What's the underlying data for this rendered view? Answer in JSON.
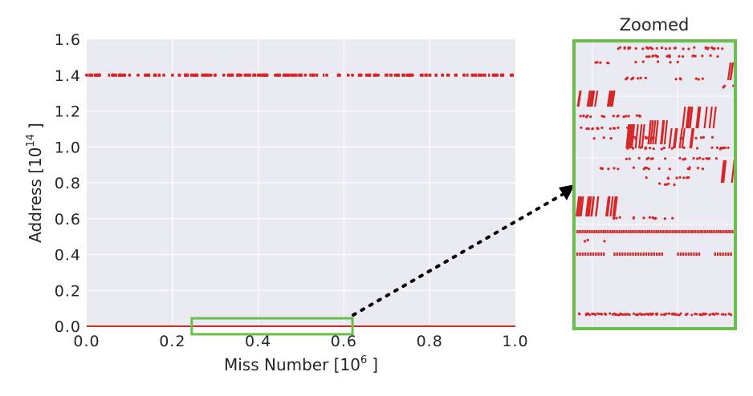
{
  "chart_data": [
    {
      "type": "scatter",
      "panel": "main",
      "title": "",
      "xlabel": "Miss Number [10^6 ]",
      "ylabel": "Address [10^14 ]",
      "xlabel_main": "Miss Number [10",
      "xlabel_exp": "6",
      "xlabel_end": "]",
      "ylabel_main": "Address [10",
      "ylabel_exp": "14",
      "ylabel_end": "]",
      "xlim": [
        0.0,
        1.0
      ],
      "ylim": [
        0.0,
        1.6
      ],
      "xticks": [
        0.0,
        0.2,
        0.4,
        0.6,
        0.8,
        1.0
      ],
      "xtick_labels": [
        "0.0",
        "0.2",
        "0.4",
        "0.6",
        "0.8",
        "1.0"
      ],
      "yticks": [
        0.0,
        0.2,
        0.4,
        0.6,
        0.8,
        1.0,
        1.2,
        1.4,
        1.6
      ],
      "ytick_labels": [
        "0.0",
        "0.2",
        "0.4",
        "0.6",
        "0.8",
        "1.0",
        "1.2",
        "1.4",
        "1.6"
      ],
      "grid": true,
      "series": [
        {
          "values_description_free": true,
          "points": [
            [
              0.0,
              1.4
            ],
            [
              0.01,
              1.4
            ],
            [
              0.03,
              1.4
            ],
            [
              0.06,
              1.4
            ],
            [
              0.08,
              1.4
            ],
            [
              0.1,
              1.4
            ],
            [
              0.12,
              1.4
            ],
            [
              0.16,
              1.4
            ],
            [
              0.18,
              1.4
            ],
            [
              0.2,
              1.4
            ],
            [
              0.23,
              1.4
            ],
            [
              0.25,
              1.4
            ],
            [
              0.27,
              1.4
            ],
            [
              0.29,
              1.4
            ],
            [
              0.32,
              1.4
            ],
            [
              0.34,
              1.4
            ],
            [
              0.36,
              1.4
            ],
            [
              0.38,
              1.4
            ],
            [
              0.4,
              1.4
            ],
            [
              0.42,
              1.4
            ],
            [
              0.44,
              1.4
            ],
            [
              0.46,
              1.4
            ],
            [
              0.48,
              1.4
            ],
            [
              0.51,
              1.4
            ],
            [
              0.53,
              1.4
            ],
            [
              0.56,
              1.4
            ],
            [
              0.59,
              1.4
            ],
            [
              0.61,
              1.4
            ],
            [
              0.62,
              1.4
            ],
            [
              0.64,
              1.4
            ],
            [
              0.66,
              1.4
            ],
            [
              0.68,
              1.4
            ],
            [
              0.7,
              1.4
            ],
            [
              0.72,
              1.4
            ],
            [
              0.74,
              1.4
            ],
            [
              0.76,
              1.4
            ],
            [
              0.78,
              1.4
            ],
            [
              0.8,
              1.4
            ],
            [
              0.83,
              1.4
            ],
            [
              0.86,
              1.4
            ],
            [
              0.88,
              1.4
            ],
            [
              0.9,
              1.4
            ],
            [
              0.92,
              1.4
            ],
            [
              0.95,
              1.4
            ],
            [
              0.97,
              1.4
            ],
            [
              0.99,
              1.4
            ]
          ],
          "line_at": 0.0,
          "color": "#d62728"
        }
      ],
      "highlight_region": {
        "x": [
          0.245,
          0.62
        ],
        "y": [
          -0.04,
          0.04
        ],
        "color": "#6abf4b"
      }
    },
    {
      "type": "scatter",
      "panel": "inset",
      "title": "Zoomed",
      "color": "#d62728",
      "border_color": "#6abf4b"
    }
  ],
  "colors": {
    "axes_bg": "#eaeaf2",
    "grid": "#ffffff",
    "data": "#d62728",
    "highlight": "#6abf4b",
    "arrow": "#000000"
  }
}
